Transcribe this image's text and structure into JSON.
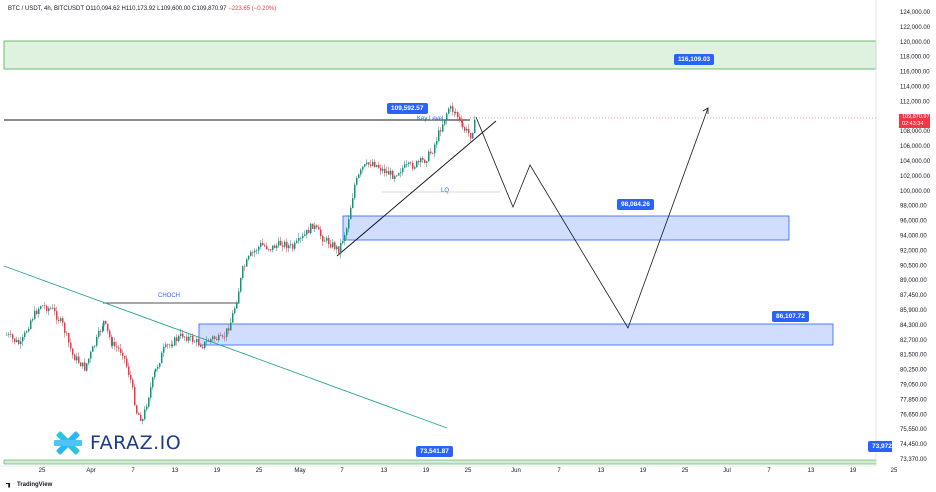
{
  "header": {
    "symbol": "BTC / USDT, 4h, BITCUSDT",
    "open": "O110,094.62",
    "high": "H110,173.92",
    "low": "L109,600.00",
    "close": "C109,870.97",
    "change": "−223.65 (−0.20%)"
  },
  "last_price": {
    "value": "109,870.97",
    "countdown": "02:43:34"
  },
  "annotations": {
    "key_level_price": "109,592.57",
    "key_level_label": "Key Level",
    "resistance_zone_price": "116,109.03",
    "mid_zone_price": "98,084.26",
    "lower_zone_price": "86,107.72",
    "bottom_price": "73,541.87",
    "bottom_price_right": "73,972",
    "choch_label": "CHOCH",
    "lq_label": "LQ"
  },
  "branding": {
    "logo_text": "FARAZ.IO",
    "platform": "TradingView"
  },
  "chart_data": {
    "type": "candlestick",
    "price_axis_ticks": [
      "124,000.00",
      "122,000.00",
      "120,000.00",
      "118,000.00",
      "116,000.00",
      "114,000.00",
      "112,000.00",
      "110,000.00",
      "108,000.00",
      "106,000.00",
      "104,000.00",
      "102,000.00",
      "100,000.00",
      "98,000.00",
      "96,000.00",
      "94,000.00",
      "92,000.00",
      "90,500.00",
      "89,000.00",
      "87,450.00",
      "85,900.00",
      "84,300.00",
      "82,700.00",
      "81,500.00",
      "80,250.00",
      "79,050.00",
      "77,850.00",
      "76,650.00",
      "75,550.00",
      "74,450.00",
      "73,370.00"
    ],
    "time_axis_ticks": [
      "25",
      "Apr",
      "7",
      "13",
      "19",
      "25",
      "May",
      "7",
      "13",
      "19",
      "25",
      "Jun",
      "7",
      "13",
      "19",
      "25",
      "Jul",
      "7",
      "13",
      "19",
      "25"
    ],
    "zones": [
      {
        "name": "resistance",
        "from": 116109.03,
        "to": 120000,
        "color": "#4caf50"
      },
      {
        "name": "demand-mid",
        "from": 95400,
        "to": 98084.26,
        "color": "#2962ff"
      },
      {
        "name": "demand-low",
        "from": 83800,
        "to": 86107.72,
        "color": "#2962ff"
      }
    ],
    "levels": {
      "key_level": 109592.57,
      "bottom": 73541.87,
      "last": 109870.97
    },
    "colors": {
      "up": "#089981",
      "down": "#f23645",
      "zone_blue": "#2962ff",
      "zone_green": "#4caf50"
    }
  }
}
